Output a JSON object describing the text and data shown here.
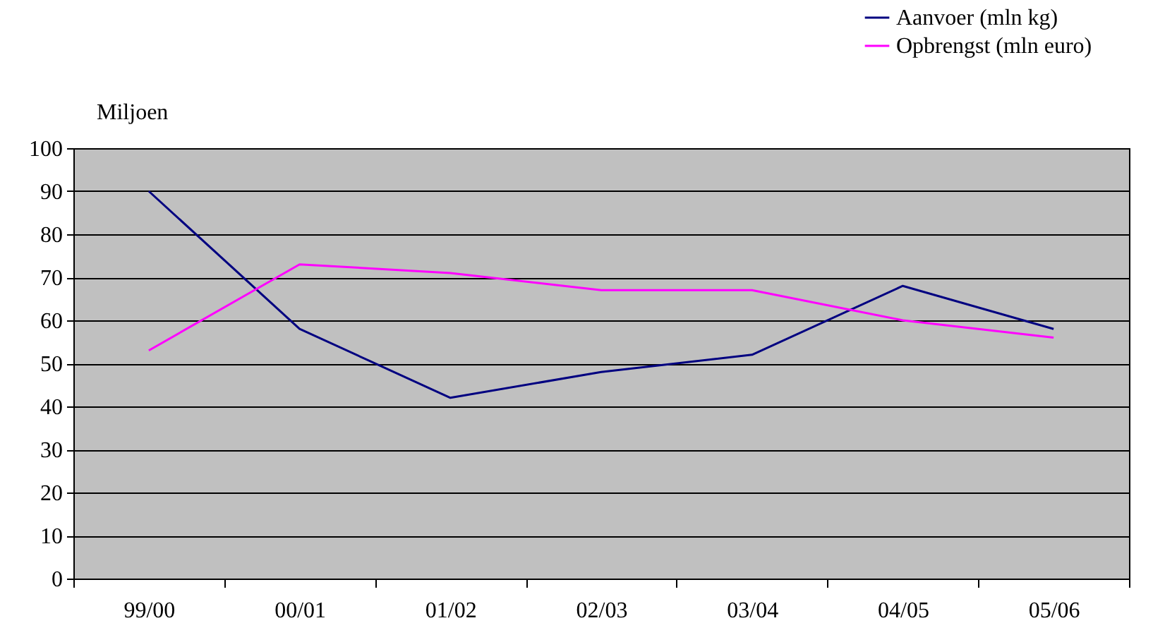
{
  "chart_data": {
    "type": "line",
    "ylabel": "Miljoen",
    "categories": [
      "99/00",
      "00/01",
      "01/02",
      "02/03",
      "03/04",
      "04/05",
      "05/06"
    ],
    "series": [
      {
        "name": "Aanvoer (mln kg)",
        "color": "#000080",
        "values": [
          90,
          58,
          42,
          48,
          52,
          68,
          58
        ]
      },
      {
        "name": "Opbrengst (mln euro)",
        "color": "#ff00ff",
        "values": [
          53,
          73,
          71,
          67,
          67,
          60,
          56
        ]
      }
    ],
    "ylim": [
      0,
      100
    ],
    "yticks": [
      0,
      10,
      20,
      30,
      40,
      50,
      60,
      70,
      80,
      90,
      100
    ],
    "grid": "y",
    "legend": "top right",
    "marker": "none",
    "line_style": "solid"
  }
}
